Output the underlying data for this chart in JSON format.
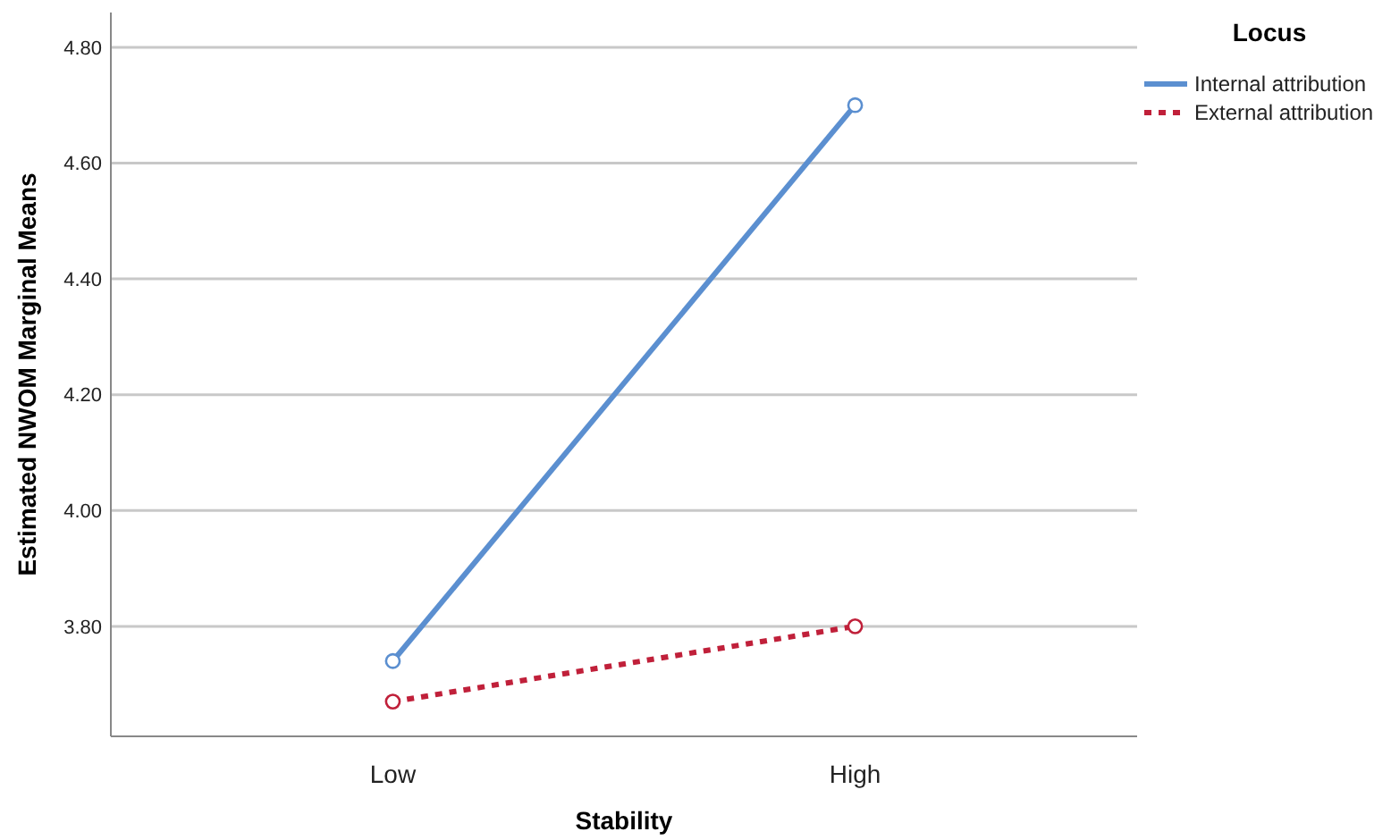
{
  "chart_data": {
    "type": "line",
    "xlabel": "Stability",
    "ylabel": "Estimated NWOM Marginal Means",
    "legend_title": "Locus",
    "categories": [
      "Low",
      "High"
    ],
    "series": [
      {
        "name": "Internal attribution",
        "color": "#5b8fd0",
        "values": [
          3.74,
          4.7
        ],
        "line_style": "solid"
      },
      {
        "name": "External attribution",
        "color": "#c0203a",
        "values": [
          3.67,
          3.8
        ],
        "line_style": "dotted"
      }
    ],
    "ylim": [
      3.61,
      4.86
    ],
    "yticks": [
      {
        "value": 3.8,
        "label": "3.80"
      },
      {
        "value": 4.0,
        "label": "4.00"
      },
      {
        "value": 4.2,
        "label": "4.20"
      },
      {
        "value": 4.4,
        "label": "4.40"
      },
      {
        "value": 4.6,
        "label": "4.60"
      },
      {
        "value": 4.8,
        "label": "4.80"
      }
    ],
    "grid": "y",
    "legend": "top right",
    "marker": "circle"
  }
}
